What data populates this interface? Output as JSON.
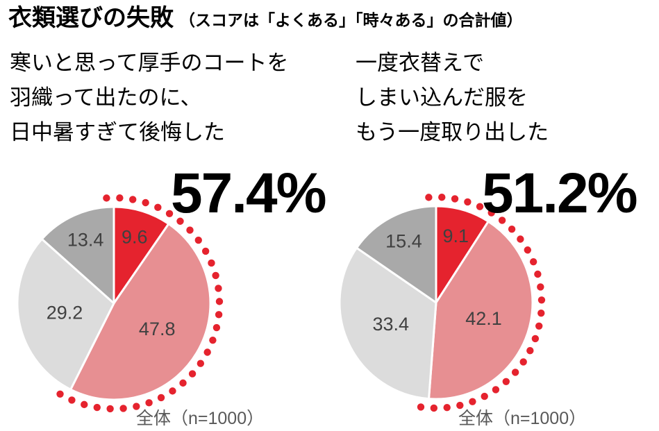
{
  "title": {
    "main": "衣類選びの失敗",
    "note": "（スコアは「よくある」「時々ある」の合計値）"
  },
  "colors": {
    "accent_red": "#e5232e",
    "pink": "#e78f92",
    "light_gray": "#dcdcdc",
    "dark_gray": "#a9a9a9",
    "slice_label_gray": "#404040",
    "sample_label_gray": "#595959"
  },
  "charts": [
    {
      "question_lines": [
        "寒いと思って厚手のコートを",
        "羽織って出たのに、",
        "日中暑すぎて後悔した"
      ],
      "score_label": "57.4%",
      "sample_label": "全体（n=1000）"
    },
    {
      "question_lines": [
        "一度衣替えで",
        "しまい込んだ服を",
        "もう一度取り出した"
      ],
      "score_label": "51.2%",
      "sample_label": "全体（n=1000）"
    }
  ],
  "chart_data": [
    {
      "type": "pie",
      "title": "寒いと思って厚手のコートを羽織って出たのに、日中暑すぎて後悔した",
      "combined_score": 57.4,
      "combined_score_label": "57.4%",
      "values": [
        9.6,
        47.8,
        29.2,
        13.4
      ],
      "value_labels": [
        "9.6",
        "47.8",
        "29.2",
        "13.4"
      ],
      "slice_colors": [
        "#e5232e",
        "#e78f92",
        "#dcdcdc",
        "#a9a9a9"
      ],
      "start_at": "12-oclock",
      "direction": "clockwise",
      "highlight_arc_percent": 57.4,
      "highlight_arc_style": "red-dotted",
      "sample_label": "全体（n=1000）"
    },
    {
      "type": "pie",
      "title": "一度衣替えでしまい込んだ服をもう一度取り出した",
      "combined_score": 51.2,
      "combined_score_label": "51.2%",
      "values": [
        9.1,
        42.1,
        33.4,
        15.4
      ],
      "value_labels": [
        "9.1",
        "42.1",
        "33.4",
        "15.4"
      ],
      "slice_colors": [
        "#e5232e",
        "#e78f92",
        "#dcdcdc",
        "#a9a9a9"
      ],
      "start_at": "12-oclock",
      "direction": "clockwise",
      "highlight_arc_percent": 51.2,
      "highlight_arc_style": "red-dotted",
      "sample_label": "全体（n=1000）"
    }
  ]
}
